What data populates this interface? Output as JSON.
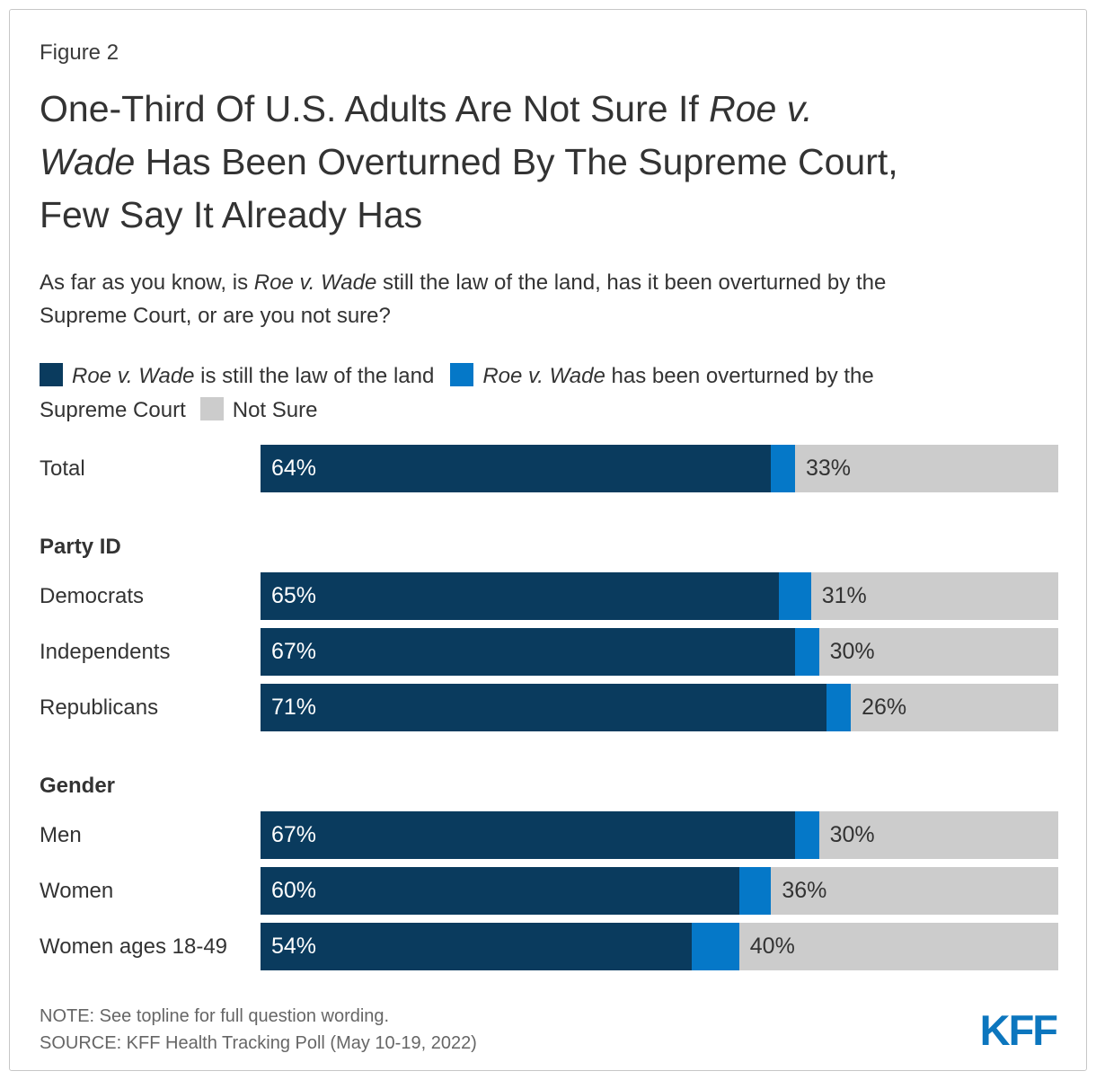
{
  "figure_label": "Figure 2",
  "title_lines": [
    {
      "pre": "One-Third Of U.S. Adults Are Not Sure If ",
      "italic": "Roe v."
    },
    {
      "italic": "Wade",
      "post": " Has Been Overturned By The Supreme Court,"
    },
    {
      "text": "Few Say It Already Has"
    }
  ],
  "subtitle_lines": [
    {
      "pre": "As far as you know, is ",
      "italic": "Roe v. Wade",
      "post": " still the law of the land, has it been overturned by the"
    },
    {
      "text": "Supreme Court, or are you not sure?"
    }
  ],
  "legend": {
    "item1": {
      "italic": "Roe v. Wade",
      "text": " is still the law of the land"
    },
    "item2": {
      "italic": "Roe v. Wade",
      "text_line1": " has been overturned by the",
      "text_line2": "Supreme Court"
    },
    "item3": {
      "text": "Not Sure"
    }
  },
  "chart_data": {
    "type": "bar",
    "orientation": "horizontal",
    "stacked": true,
    "unit": "percent",
    "xlim": [
      0,
      100
    ],
    "legend_position": "top",
    "series_names": [
      "Roe v. Wade is still the law of the land",
      "Roe v. Wade has been overturned by the Supreme Court",
      "Not Sure"
    ],
    "colors": {
      "law": "#0a3b5e",
      "over": "#0578c8",
      "ns": "#cccccc",
      "logo": "#0c76be"
    },
    "groups": [
      {
        "header": "",
        "rows": [
          {
            "label": "Total",
            "values": [
              64,
              3,
              33
            ],
            "shown": [
              "64%",
              "",
              "33%"
            ]
          }
        ]
      },
      {
        "header": "Party ID",
        "rows": [
          {
            "label": "Democrats",
            "values": [
              65,
              4,
              31
            ],
            "shown": [
              "65%",
              "",
              "31%"
            ]
          },
          {
            "label": "Independents",
            "values": [
              67,
              3,
              30
            ],
            "shown": [
              "67%",
              "",
              "30%"
            ]
          },
          {
            "label": "Republicans",
            "values": [
              71,
              3,
              26
            ],
            "shown": [
              "71%",
              "",
              "26%"
            ]
          }
        ]
      },
      {
        "header": "Gender",
        "rows": [
          {
            "label": "Men",
            "values": [
              67,
              3,
              30
            ],
            "shown": [
              "67%",
              "",
              "30%"
            ]
          },
          {
            "label": "Women",
            "values": [
              60,
              4,
              36
            ],
            "shown": [
              "60%",
              "",
              "36%"
            ]
          },
          {
            "label": "Women ages 18-49",
            "values": [
              54,
              6,
              40
            ],
            "shown": [
              "54%",
              "",
              "40%"
            ]
          }
        ]
      }
    ]
  },
  "footer": {
    "note": "NOTE: See topline for full question wording.",
    "source": "SOURCE: KFF Health Tracking Poll (May 10-19, 2022)",
    "logo_text": "KFF"
  }
}
